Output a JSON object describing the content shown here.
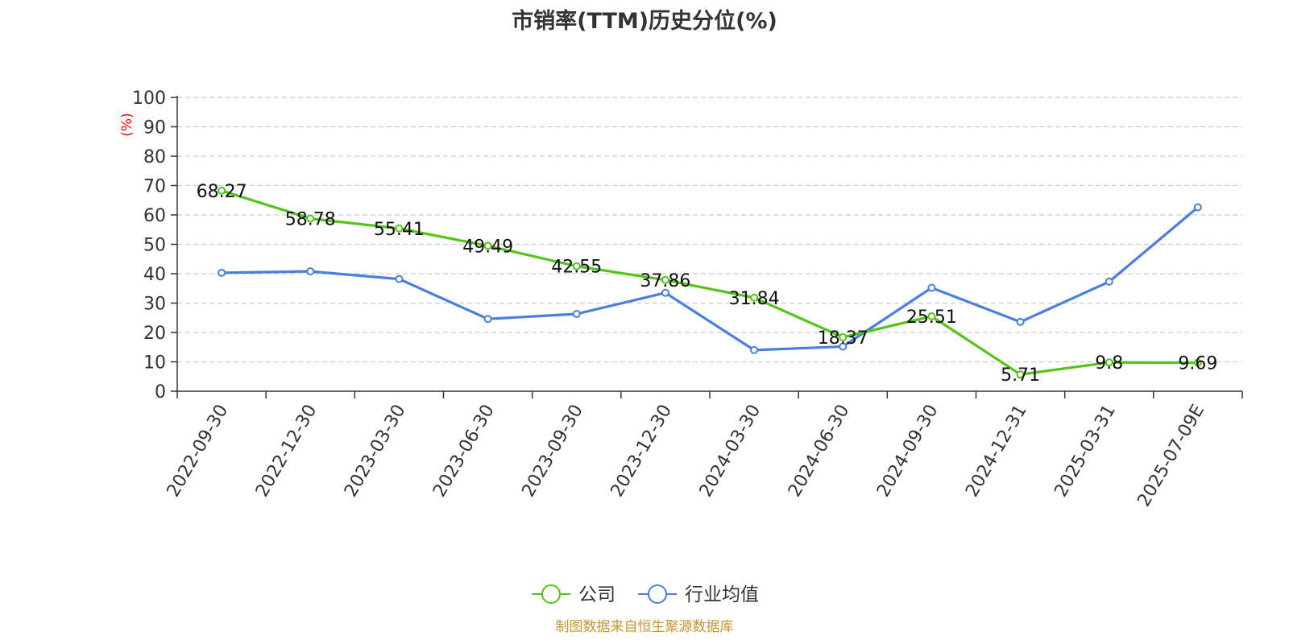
{
  "chart_data": {
    "type": "line",
    "title": "市销率(TTM)历史分位(%)",
    "ylabel": "(%)",
    "xlabel": "",
    "ylim": [
      0,
      100
    ],
    "yticks": [
      0,
      10,
      20,
      30,
      40,
      50,
      60,
      70,
      80,
      90,
      100
    ],
    "grid": true,
    "legend_position": "bottom-center",
    "categories": [
      "2022-09-30",
      "2022-12-30",
      "2023-03-30",
      "2023-06-30",
      "2023-09-30",
      "2023-12-30",
      "2024-03-30",
      "2024-06-30",
      "2024-09-30",
      "2024-12-31",
      "2025-03-31",
      "2025-07-09E"
    ],
    "series": [
      {
        "name": "公司",
        "color": "#52c41a",
        "values": [
          68.27,
          58.78,
          55.41,
          49.49,
          42.55,
          37.86,
          31.84,
          18.37,
          25.51,
          5.71,
          9.8,
          9.69
        ],
        "labels": [
          "68.27",
          "58.78",
          "55.41",
          "49.49",
          "42.55",
          "37.86",
          "31.84",
          "18.37",
          "25.51",
          "5.71",
          "9.8",
          "9.69"
        ]
      },
      {
        "name": "行业均值",
        "color": "#4a7fe0",
        "values": [
          40.3,
          40.8,
          38.2,
          24.6,
          26.3,
          33.5,
          14.0,
          15.2,
          35.2,
          23.6,
          37.3,
          62.6
        ]
      }
    ]
  },
  "source_text": "制图数据来自恒生聚源数据库",
  "colors": {
    "title": "#333333",
    "axis": "#333333",
    "grid": "#cccccc",
    "ylabel": "#ff0000",
    "source": "#c8962e"
  }
}
